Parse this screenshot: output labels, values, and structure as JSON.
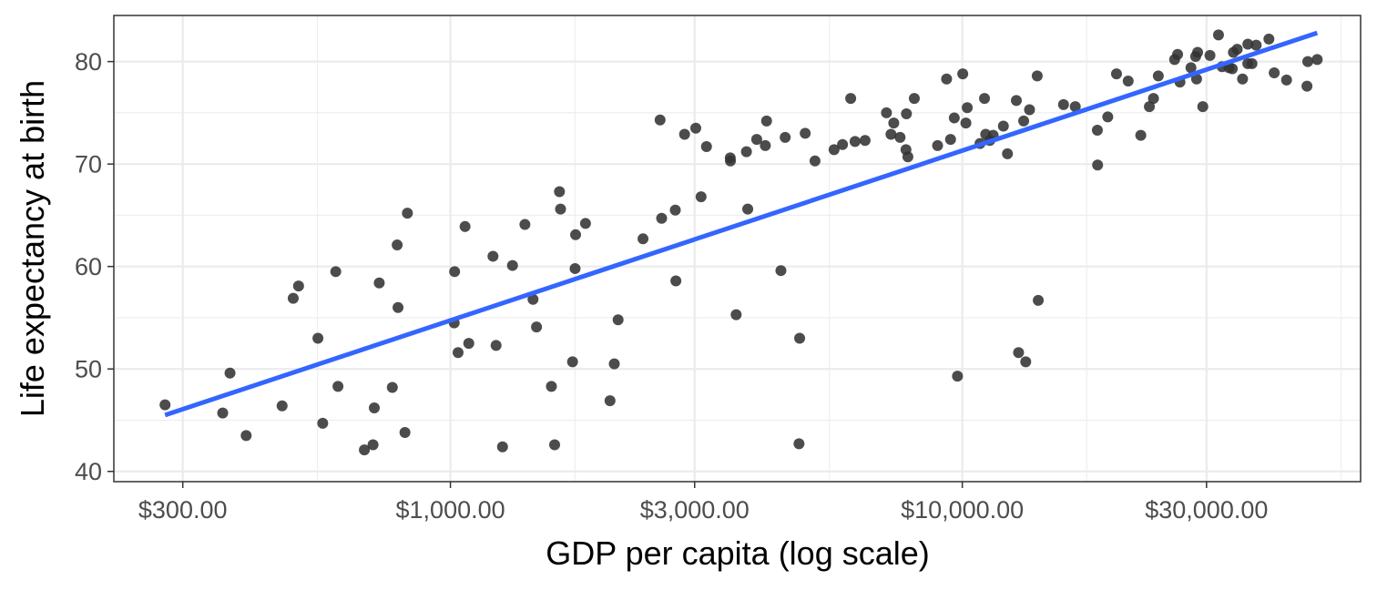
{
  "chart_data": {
    "type": "scatter",
    "title": "",
    "xlabel": "GDP per capita (log scale)",
    "ylabel": "Life expectancy at birth",
    "x_scale": "log",
    "xlim": [
      220,
      60000
    ],
    "ylim": [
      39,
      84.5
    ],
    "grid": true,
    "x_ticks": [
      {
        "value": 300,
        "label": "$300.00"
      },
      {
        "value": 1000,
        "label": "$1,000.00"
      },
      {
        "value": 3000,
        "label": "$3,000.00"
      },
      {
        "value": 10000,
        "label": "$10,000.00"
      },
      {
        "value": 30000,
        "label": "$30,000.00"
      }
    ],
    "x_minor_ticks": [
      550,
      1750,
      5500,
      17500,
      55000
    ],
    "y_ticks": [
      {
        "value": 40,
        "label": "40"
      },
      {
        "value": 50,
        "label": "50"
      },
      {
        "value": 60,
        "label": "60"
      },
      {
        "value": 70,
        "label": "70"
      },
      {
        "value": 80,
        "label": "80"
      }
    ],
    "y_minor_ticks": [
      45,
      55,
      65,
      75
    ],
    "colors": {
      "points": "#333333",
      "trend": "#3366ff",
      "grid": "#ebebeb",
      "border": "#333333"
    },
    "points": [
      {
        "x": 277,
        "y": 46.5
      },
      {
        "x": 359,
        "y": 45.7
      },
      {
        "x": 371,
        "y": 49.6
      },
      {
        "x": 399,
        "y": 43.5
      },
      {
        "x": 469,
        "y": 46.4
      },
      {
        "x": 493,
        "y": 56.9
      },
      {
        "x": 505,
        "y": 58.1
      },
      {
        "x": 551,
        "y": 53.0
      },
      {
        "x": 563,
        "y": 44.7
      },
      {
        "x": 597,
        "y": 59.5
      },
      {
        "x": 603,
        "y": 48.3
      },
      {
        "x": 679,
        "y": 42.1
      },
      {
        "x": 706,
        "y": 42.6
      },
      {
        "x": 710,
        "y": 46.2
      },
      {
        "x": 726,
        "y": 58.4
      },
      {
        "x": 770,
        "y": 48.2
      },
      {
        "x": 787,
        "y": 62.1
      },
      {
        "x": 790,
        "y": 56.0
      },
      {
        "x": 815,
        "y": 43.8
      },
      {
        "x": 824,
        "y": 65.2
      },
      {
        "x": 1017,
        "y": 54.5
      },
      {
        "x": 1019,
        "y": 59.5
      },
      {
        "x": 1035,
        "y": 51.6
      },
      {
        "x": 1068,
        "y": 63.9
      },
      {
        "x": 1086,
        "y": 52.5
      },
      {
        "x": 1211,
        "y": 61.0
      },
      {
        "x": 1228,
        "y": 52.3
      },
      {
        "x": 1264,
        "y": 42.4
      },
      {
        "x": 1322,
        "y": 60.1
      },
      {
        "x": 1398,
        "y": 64.1
      },
      {
        "x": 1450,
        "y": 56.8
      },
      {
        "x": 1473,
        "y": 54.1
      },
      {
        "x": 1575,
        "y": 48.3
      },
      {
        "x": 1598,
        "y": 42.6
      },
      {
        "x": 1633,
        "y": 67.3
      },
      {
        "x": 1641,
        "y": 65.6
      },
      {
        "x": 1732,
        "y": 50.7
      },
      {
        "x": 1752,
        "y": 59.8
      },
      {
        "x": 1756,
        "y": 63.1
      },
      {
        "x": 1836,
        "y": 64.2
      },
      {
        "x": 2050,
        "y": 46.9
      },
      {
        "x": 2090,
        "y": 50.5
      },
      {
        "x": 2126,
        "y": 54.8
      },
      {
        "x": 2378,
        "y": 62.7
      },
      {
        "x": 2568,
        "y": 74.3
      },
      {
        "x": 2586,
        "y": 64.7
      },
      {
        "x": 2750,
        "y": 65.5
      },
      {
        "x": 2757,
        "y": 58.6
      },
      {
        "x": 2867,
        "y": 72.9
      },
      {
        "x": 3015,
        "y": 73.5
      },
      {
        "x": 3088,
        "y": 66.8
      },
      {
        "x": 3164,
        "y": 71.7
      },
      {
        "x": 3521,
        "y": 70.6
      },
      {
        "x": 3524,
        "y": 70.3
      },
      {
        "x": 3616,
        "y": 55.3
      },
      {
        "x": 3787,
        "y": 71.2
      },
      {
        "x": 3809,
        "y": 65.6
      },
      {
        "x": 3966,
        "y": 72.4
      },
      {
        "x": 4123,
        "y": 71.8
      },
      {
        "x": 4146,
        "y": 74.2
      },
      {
        "x": 4422,
        "y": 59.6
      },
      {
        "x": 4508,
        "y": 72.6
      },
      {
        "x": 4797,
        "y": 42.7
      },
      {
        "x": 4811,
        "y": 53.0
      },
      {
        "x": 4933,
        "y": 73.0
      },
      {
        "x": 5155,
        "y": 70.3
      },
      {
        "x": 5617,
        "y": 71.4
      },
      {
        "x": 5835,
        "y": 71.9
      },
      {
        "x": 6053,
        "y": 76.4
      },
      {
        "x": 6173,
        "y": 72.2
      },
      {
        "x": 6458,
        "y": 72.3
      },
      {
        "x": 7110,
        "y": 75.0
      },
      {
        "x": 7256,
        "y": 72.9
      },
      {
        "x": 7347,
        "y": 74.0
      },
      {
        "x": 7559,
        "y": 72.6
      },
      {
        "x": 7762,
        "y": 71.4
      },
      {
        "x": 7829,
        "y": 70.7
      },
      {
        "x": 7778,
        "y": 74.9
      },
      {
        "x": 8058,
        "y": 76.4
      },
      {
        "x": 8948,
        "y": 71.8
      },
      {
        "x": 9318,
        "y": 78.3
      },
      {
        "x": 9485,
        "y": 72.4
      },
      {
        "x": 9646,
        "y": 74.5
      },
      {
        "x": 9786,
        "y": 49.3
      },
      {
        "x": 10020,
        "y": 78.8
      },
      {
        "x": 10163,
        "y": 74.0
      },
      {
        "x": 10225,
        "y": 75.5
      },
      {
        "x": 10830,
        "y": 72.0
      },
      {
        "x": 11050,
        "y": 76.4
      },
      {
        "x": 11110,
        "y": 72.9
      },
      {
        "x": 11318,
        "y": 72.3
      },
      {
        "x": 11490,
        "y": 72.8
      },
      {
        "x": 12030,
        "y": 73.7
      },
      {
        "x": 12253,
        "y": 71.0
      },
      {
        "x": 12753,
        "y": 76.2
      },
      {
        "x": 12880,
        "y": 51.6
      },
      {
        "x": 13180,
        "y": 74.2
      },
      {
        "x": 13303,
        "y": 50.7
      },
      {
        "x": 13531,
        "y": 75.3
      },
      {
        "x": 14008,
        "y": 78.6
      },
      {
        "x": 14073,
        "y": 56.7
      },
      {
        "x": 15767,
        "y": 75.8
      },
      {
        "x": 16623,
        "y": 75.6
      },
      {
        "x": 18380,
        "y": 69.9
      },
      {
        "x": 18360,
        "y": 73.3
      },
      {
        "x": 19240,
        "y": 74.6
      },
      {
        "x": 20010,
        "y": 78.8
      },
      {
        "x": 21090,
        "y": 78.1
      },
      {
        "x": 22320,
        "y": 72.8
      },
      {
        "x": 23200,
        "y": 75.6
      },
      {
        "x": 23630,
        "y": 76.4
      },
      {
        "x": 24150,
        "y": 78.6
      },
      {
        "x": 25990,
        "y": 80.2
      },
      {
        "x": 26340,
        "y": 80.7
      },
      {
        "x": 26620,
        "y": 78.0
      },
      {
        "x": 27970,
        "y": 79.4
      },
      {
        "x": 28570,
        "y": 80.5
      },
      {
        "x": 28690,
        "y": 78.3
      },
      {
        "x": 28820,
        "y": 80.9
      },
      {
        "x": 29500,
        "y": 75.6
      },
      {
        "x": 30470,
        "y": 80.6
      },
      {
        "x": 31660,
        "y": 82.6
      },
      {
        "x": 32170,
        "y": 79.5
      },
      {
        "x": 33200,
        "y": 79.4
      },
      {
        "x": 33690,
        "y": 79.3
      },
      {
        "x": 33860,
        "y": 80.9
      },
      {
        "x": 34440,
        "y": 81.2
      },
      {
        "x": 35280,
        "y": 78.3
      },
      {
        "x": 36120,
        "y": 79.8
      },
      {
        "x": 36130,
        "y": 81.7
      },
      {
        "x": 36810,
        "y": 79.8
      },
      {
        "x": 37510,
        "y": 81.6
      },
      {
        "x": 39720,
        "y": 82.2
      },
      {
        "x": 40680,
        "y": 78.9
      },
      {
        "x": 43000,
        "y": 78.2
      },
      {
        "x": 47140,
        "y": 77.6
      },
      {
        "x": 47310,
        "y": 80.0
      },
      {
        "x": 49360,
        "y": 80.2
      }
    ],
    "trend_line": {
      "x": [
        277,
        49360
      ],
      "y": [
        45.5,
        82.8
      ]
    }
  }
}
